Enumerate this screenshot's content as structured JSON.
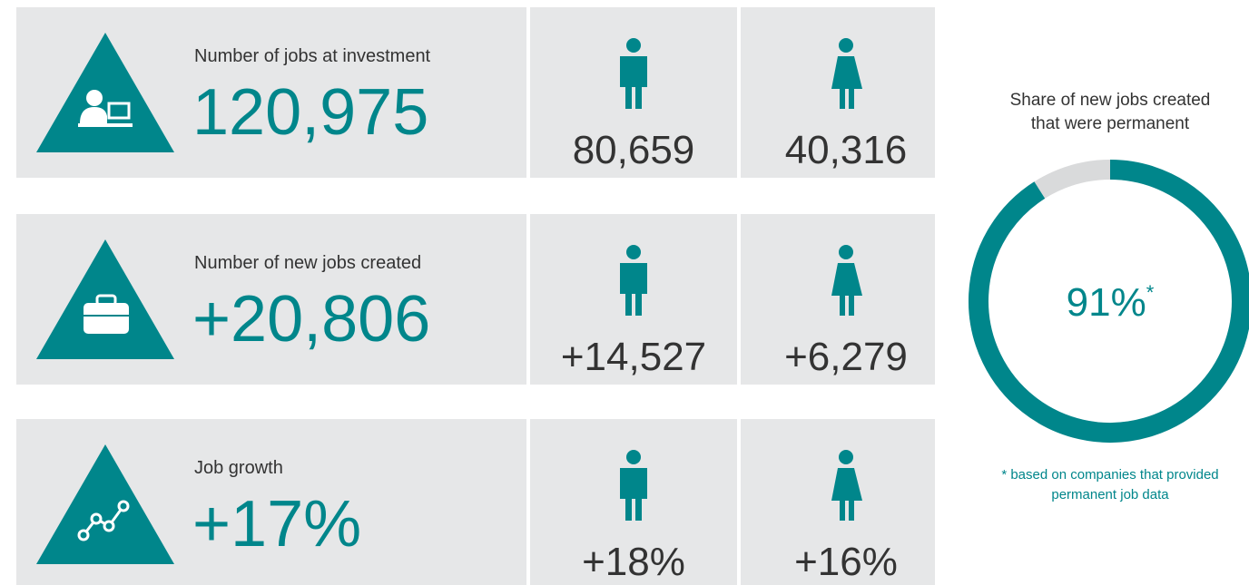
{
  "rows": [
    {
      "label": "Number of jobs at investment",
      "total": "120,975",
      "men": "80,659",
      "women": "40,316"
    },
    {
      "label": "Number of new jobs created",
      "total": "+20,806",
      "men": "+14,527",
      "women": "+6,279"
    },
    {
      "label": "Job growth",
      "total": "+17%",
      "men": "+18%",
      "women": "+16%"
    }
  ],
  "donut": {
    "title_lines": [
      "Share of new jobs created",
      "that were permanent"
    ],
    "value": 91,
    "value_label": "91%",
    "marker": "*",
    "note_lines": [
      "* based on companies that provided",
      "permanent job data"
    ]
  }
}
